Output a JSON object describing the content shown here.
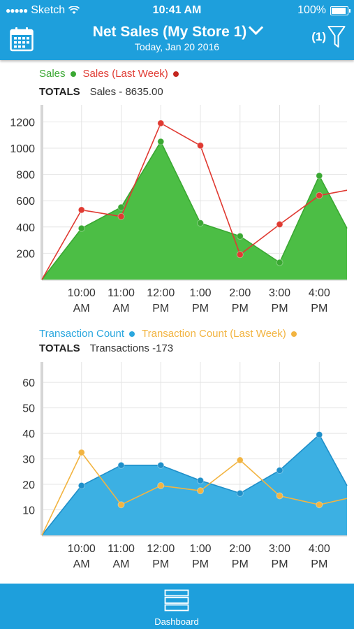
{
  "status_bar": {
    "carrier": "Sketch",
    "time": "10:41 AM",
    "battery": "100%",
    "battery_level": 1.0
  },
  "header": {
    "title": "Net Sales (My Store 1)",
    "subtitle": "Today, Jan 20 2016",
    "filter_count": "(1)",
    "icons": {
      "calendar": "calendar-icon",
      "filter": "filter-icon",
      "dropdown": "chevron-down-icon"
    }
  },
  "sales_section": {
    "legend": [
      {
        "label": "Sales",
        "color": "#3aa832"
      },
      {
        "label": "Sales (Last Week)",
        "color": "#e03a32"
      }
    ],
    "totals_label": "TOTALS",
    "totals_value": "Sales - 8635.00"
  },
  "transactions_section": {
    "legend": [
      {
        "label": "Transaction Count",
        "color": "#2ba7de"
      },
      {
        "label": "Transaction Count (Last Week)",
        "color": "#f2b441"
      }
    ],
    "totals_label": "TOTALS",
    "totals_value": "Transactions -173"
  },
  "chart_data": [
    {
      "type": "area",
      "x_labels": [
        [
          "10:00",
          "AM"
        ],
        [
          "11:00",
          "AM"
        ],
        [
          "12:00",
          "PM"
        ],
        [
          "1:00",
          "PM"
        ],
        [
          "2:00",
          "PM"
        ],
        [
          "3:00",
          "PM"
        ],
        [
          "4:00",
          "PM"
        ]
      ],
      "y_ticks": [
        200,
        400,
        600,
        800,
        1000,
        1200
      ],
      "ylim": [
        0,
        1330
      ],
      "xlim": [
        -1,
        6.7
      ],
      "grid": true,
      "legend_position": "top-left",
      "series": [
        {
          "name": "Sales",
          "style": "area",
          "color": "#3aa832",
          "fill": "#4cbe45",
          "x": [
            -1,
            0,
            1,
            2,
            3,
            4,
            5,
            6,
            6.7
          ],
          "values": [
            0,
            390,
            550,
            1050,
            430,
            330,
            130,
            790,
            390
          ],
          "markers": [
            1,
            2,
            3,
            4,
            5,
            6,
            7
          ]
        },
        {
          "name": "Sales (Last Week)",
          "style": "line",
          "color": "#e03a32",
          "x": [
            -1,
            0,
            1,
            2,
            3,
            4,
            5,
            6,
            6.7
          ],
          "values": [
            0,
            530,
            480,
            1190,
            1020,
            190,
            420,
            640,
            680
          ],
          "markers": [
            1,
            2,
            3,
            4,
            5,
            6,
            7
          ]
        }
      ]
    },
    {
      "type": "area",
      "x_labels": [
        [
          "10:00",
          "AM"
        ],
        [
          "11:00",
          "AM"
        ],
        [
          "12:00",
          "PM"
        ],
        [
          "1:00",
          "PM"
        ],
        [
          "2:00",
          "PM"
        ],
        [
          "3:00",
          "PM"
        ],
        [
          "4:00",
          "PM"
        ]
      ],
      "y_ticks": [
        10,
        20,
        30,
        40,
        50,
        60
      ],
      "ylim": [
        0,
        68
      ],
      "xlim": [
        -1,
        6.7
      ],
      "grid": true,
      "legend_position": "top-left",
      "series": [
        {
          "name": "Transaction Count",
          "style": "area",
          "color": "#1f8fc9",
          "fill": "#3cb0e3",
          "x": [
            -1,
            0,
            1,
            2,
            3,
            4,
            5,
            6,
            6.7
          ],
          "values": [
            0,
            19.5,
            27.5,
            27.5,
            21.5,
            16.5,
            25.5,
            39.5,
            19.5
          ],
          "markers": [
            1,
            2,
            3,
            4,
            5,
            6,
            7
          ]
        },
        {
          "name": "Transaction Count (Last Week)",
          "style": "line",
          "color": "#f2b441",
          "x": [
            -1,
            0,
            1,
            2,
            3,
            4,
            5,
            6,
            6.7
          ],
          "values": [
            0,
            32.5,
            12,
            19.5,
            17.5,
            29.5,
            15.5,
            12,
            14.5
          ],
          "markers": [
            1,
            2,
            3,
            4,
            5,
            6,
            7
          ]
        }
      ]
    }
  ],
  "tabbar": {
    "items": [
      {
        "label": "Dashboard",
        "icon": "dashboard-icon"
      }
    ]
  }
}
